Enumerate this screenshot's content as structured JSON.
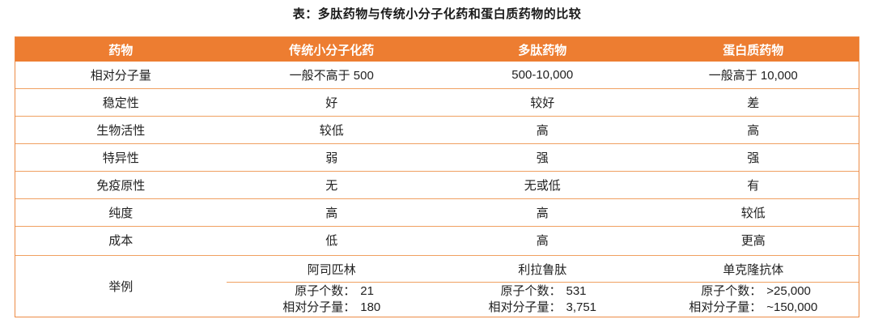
{
  "title": "表：多肽药物与传统小分子化药和蛋白质药物的比较",
  "colors": {
    "header_background": "#ED7D31",
    "header_text": "#FFFFFF",
    "border_orange": "#F0A061",
    "outer_border": "#ED8A45",
    "body_text": "#212121"
  },
  "table": {
    "headers": [
      "药物",
      "传统小分子化药",
      "多肽药物",
      "蛋白质药物"
    ],
    "rows": [
      {
        "label": "相对分子量",
        "values": [
          "一般不高于 500",
          "500-10,000",
          "一般高于 10,000"
        ]
      },
      {
        "label": "稳定性",
        "values": [
          "好",
          "较好",
          "差"
        ]
      },
      {
        "label": "生物活性",
        "values": [
          "较低",
          "高",
          "高"
        ]
      },
      {
        "label": "特异性",
        "values": [
          "弱",
          "强",
          "强"
        ]
      },
      {
        "label": "免疫原性",
        "values": [
          "无",
          "无或低",
          "有"
        ]
      },
      {
        "label": "纯度",
        "values": [
          "高",
          "高",
          "较低"
        ]
      },
      {
        "label": "成本",
        "values": [
          "低",
          "高",
          "更高"
        ]
      }
    ],
    "example_row": {
      "label": "举例",
      "atoms_label": "原子个数：",
      "mw_label": "相对分子量：",
      "examples": [
        {
          "name": "阿司匹林",
          "atoms": "21",
          "mw": "180"
        },
        {
          "name": "利拉鲁肽",
          "atoms": "531",
          "mw": "3,751"
        },
        {
          "name": "单克隆抗体",
          "atoms": ">25,000",
          "mw": "~150,000"
        }
      ]
    }
  }
}
